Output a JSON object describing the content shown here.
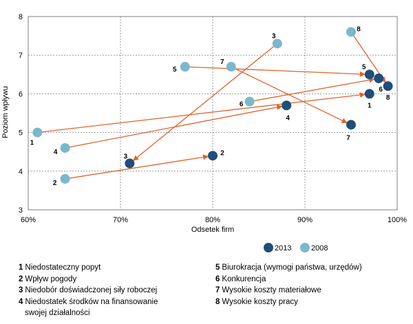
{
  "chart_data": {
    "type": "scatter",
    "title": "",
    "xlabel": "Odsetek firm",
    "ylabel": "Poziom wpływu",
    "xlim": [
      60,
      100
    ],
    "ylim": [
      3,
      8
    ],
    "x_ticks": [
      "60%",
      "70%",
      "80%",
      "90%",
      "100%"
    ],
    "y_ticks": [
      "3",
      "4",
      "5",
      "6",
      "7",
      "8"
    ],
    "grid": true,
    "legend_position": "bottom-right",
    "series": [
      {
        "name": "2013",
        "color": "#1f4e79",
        "points": [
          {
            "id": "1",
            "x": 97,
            "y": 6.0
          },
          {
            "id": "2",
            "x": 80,
            "y": 4.4
          },
          {
            "id": "3",
            "x": 71,
            "y": 4.2
          },
          {
            "id": "4",
            "x": 88,
            "y": 5.7
          },
          {
            "id": "5",
            "x": 97,
            "y": 6.5
          },
          {
            "id": "6",
            "x": 98,
            "y": 6.4
          },
          {
            "id": "7",
            "x": 95,
            "y": 5.2
          },
          {
            "id": "8",
            "x": 99,
            "y": 6.2
          }
        ]
      },
      {
        "name": "2008",
        "color": "#7ab8cc",
        "points": [
          {
            "id": "1",
            "x": 61,
            "y": 5.0
          },
          {
            "id": "2",
            "x": 64,
            "y": 3.8
          },
          {
            "id": "3",
            "x": 87,
            "y": 7.3
          },
          {
            "id": "4",
            "x": 64,
            "y": 4.6
          },
          {
            "id": "5",
            "x": 77,
            "y": 6.7
          },
          {
            "id": "6",
            "x": 84,
            "y": 5.8
          },
          {
            "id": "7",
            "x": 82,
            "y": 6.7
          },
          {
            "id": "8",
            "x": 95,
            "y": 7.6
          }
        ]
      }
    ],
    "arrows_from_2008_to_2013": [
      "1",
      "2",
      "3",
      "4",
      "5",
      "6",
      "7",
      "8"
    ],
    "arrow_color": "#e0622a"
  },
  "notes_left": [
    {
      "num": "1",
      "text": "Niedostateczny popyt"
    },
    {
      "num": "2",
      "text": "Wpływ pogody"
    },
    {
      "num": "3",
      "text": "Niedobór doświadczonej siły roboczej"
    },
    {
      "num": "4",
      "text": "Niedostatek środków na finansowanie",
      "cont": "swojej działalności"
    }
  ],
  "notes_right": [
    {
      "num": "5",
      "text": "Biurokracja (wymogi państwa, urzędów)"
    },
    {
      "num": "6",
      "text": "Konkurencja"
    },
    {
      "num": "7",
      "text": "Wysokie koszty materiałowe"
    },
    {
      "num": "8",
      "text": "Wysokie koszty pracy"
    }
  ]
}
